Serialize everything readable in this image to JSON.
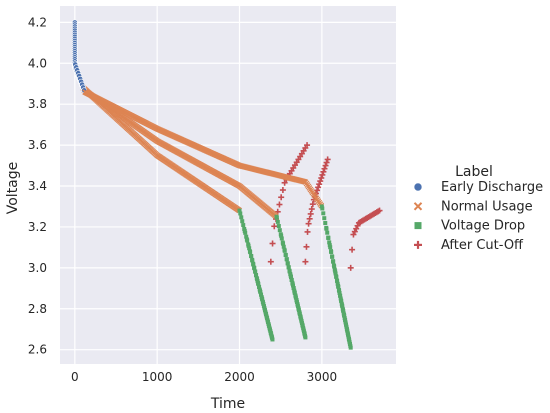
{
  "chart_data": {
    "type": "scatter",
    "xlabel": "Time",
    "ylabel": "Voltage",
    "xlim": [
      -180,
      3900
    ],
    "ylim": [
      2.53,
      4.28
    ],
    "xticks": [
      0,
      1000,
      2000,
      3000
    ],
    "yticks": [
      2.6,
      2.8,
      3.0,
      3.2,
      3.4,
      3.6,
      3.8,
      4.0,
      4.2
    ],
    "grid": true,
    "legend": {
      "title": "Label",
      "placement": "right-outside"
    },
    "series": [
      {
        "name": "Early Discharge",
        "marker": "circle",
        "color": "#4c72b0"
      },
      {
        "name": "Normal Usage",
        "marker": "x",
        "color": "#dd8452"
      },
      {
        "name": "Voltage Drop",
        "marker": "square",
        "color": "#55a868"
      },
      {
        "name": "After Cut-Off",
        "marker": "plus",
        "color": "#c44e52"
      }
    ],
    "curves": [
      {
        "points": [
          [
            0,
            4.2
          ],
          [
            0,
            3.98
          ],
          [
            100,
            3.88
          ],
          [
            1000,
            3.55
          ],
          [
            2000,
            3.28
          ],
          [
            2400,
            2.65
          ]
        ],
        "recovery": [
          [
            2380,
            3.03
          ],
          [
            2420,
            3.2
          ],
          [
            2550,
            3.42
          ],
          [
            2820,
            3.6
          ]
        ]
      },
      {
        "points": [
          [
            0,
            4.2
          ],
          [
            0,
            3.99
          ],
          [
            110,
            3.87
          ],
          [
            1000,
            3.62
          ],
          [
            2000,
            3.4
          ],
          [
            2450,
            3.25
          ],
          [
            2800,
            2.66
          ]
        ],
        "recovery": [
          [
            2800,
            3.03
          ],
          [
            2830,
            3.2
          ],
          [
            2900,
            3.33
          ],
          [
            3070,
            3.53
          ]
        ]
      },
      {
        "points": [
          [
            0,
            4.2
          ],
          [
            0,
            4.0
          ],
          [
            120,
            3.86
          ],
          [
            1000,
            3.68
          ],
          [
            2000,
            3.5
          ],
          [
            2800,
            3.42
          ],
          [
            3000,
            3.3
          ],
          [
            3350,
            2.61
          ]
        ],
        "recovery": [
          [
            3350,
            3.0
          ],
          [
            3380,
            3.16
          ],
          [
            3450,
            3.22
          ],
          [
            3700,
            3.28
          ]
        ]
      }
    ]
  }
}
